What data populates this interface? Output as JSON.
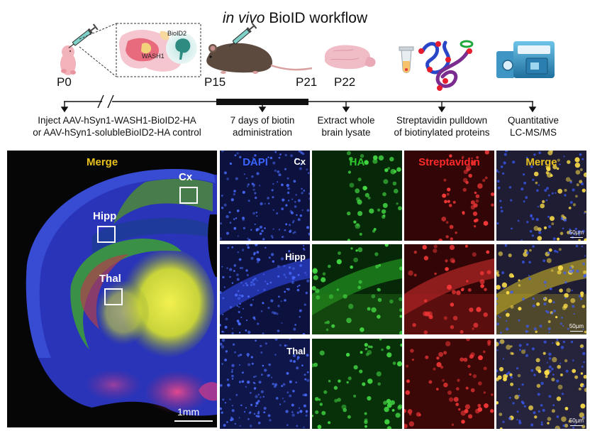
{
  "title": {
    "italic": "in vivo",
    "rest": "BioID workflow"
  },
  "timeline": {
    "stages": [
      "P0",
      "P15",
      "P21",
      "P22"
    ],
    "steps": [
      {
        "line1": "Inject AAV-hSyn1-WASH1-BioID2-HA",
        "line2": "or AAV-hSyn1-solubleBioID2-HA control"
      },
      {
        "line1": "7 days of biotin",
        "line2": "administration"
      },
      {
        "line1": "Extract whole",
        "line2": "brain lysate"
      },
      {
        "line1": "Streptavidin pulldown",
        "line2": "of biotinylated proteins"
      },
      {
        "line1": "Quantitative",
        "line2": "LC-MS/MS"
      }
    ],
    "inset_labels": {
      "bioid2": "BioID2",
      "wash1": "WASH1"
    }
  },
  "merge_panel": {
    "label": "Merge",
    "regions": [
      "Cx",
      "Hipp",
      "Thal"
    ],
    "scale": "1mm"
  },
  "grid": {
    "columns": [
      "DAPI",
      "HA",
      "Streptavidin",
      "Merge"
    ],
    "rows": [
      "Cx",
      "Hipp",
      "Thal"
    ],
    "scale": "50µm"
  },
  "colors": {
    "dapi": "#3a64ff",
    "ha": "#2ec82e",
    "streptavidin": "#ff2a2a",
    "merge": "#e8c020",
    "brain_blue": "#2b3fd8",
    "brain_yellow": "#d8e020",
    "brain_pink": "#d03a8a"
  },
  "icons": [
    "syringe-icon",
    "pup-icon",
    "mouse-icon",
    "brain-icon",
    "tube-icon",
    "protein-icon",
    "mass-spectrometer-icon"
  ]
}
